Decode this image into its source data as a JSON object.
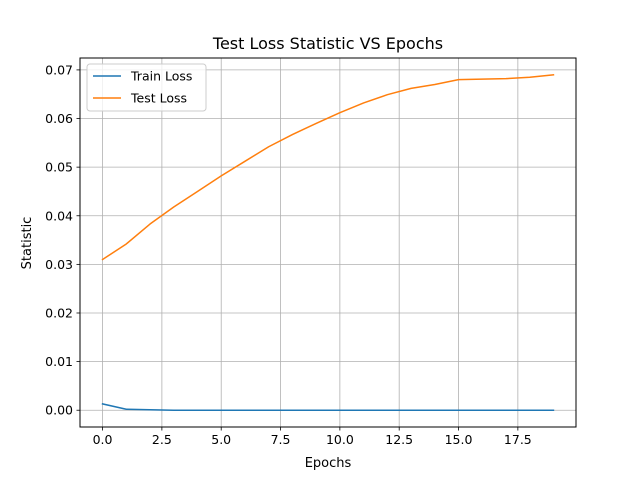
{
  "chart_data": {
    "type": "line",
    "title": "Test Loss Statistic VS Epochs",
    "xlabel": "Epochs",
    "ylabel": "Statistic",
    "xlim": [
      -0.95,
      19.95
    ],
    "ylim": [
      -0.00345,
      0.07245
    ],
    "x_ticks": [
      0.0,
      2.5,
      5.0,
      7.5,
      10.0,
      12.5,
      15.0,
      17.5
    ],
    "x_tick_labels": [
      "0.0",
      "2.5",
      "5.0",
      "7.5",
      "10.0",
      "12.5",
      "15.0",
      "17.5"
    ],
    "y_ticks": [
      0.0,
      0.01,
      0.02,
      0.03,
      0.04,
      0.05,
      0.06,
      0.07
    ],
    "y_tick_labels": [
      "0.00",
      "0.01",
      "0.02",
      "0.03",
      "0.04",
      "0.05",
      "0.06",
      "0.07"
    ],
    "grid": true,
    "legend_position": "top-left",
    "x": [
      0,
      1,
      2,
      3,
      4,
      5,
      6,
      7,
      8,
      9,
      10,
      11,
      12,
      13,
      14,
      15,
      16,
      17,
      18,
      19
    ],
    "series": [
      {
        "name": "Train Loss",
        "color": "#1f77b4",
        "values": [
          0.0013,
          0.0002,
          0.0001,
          0.0,
          0.0,
          0.0,
          0.0,
          0.0,
          0.0,
          0.0,
          0.0,
          0.0,
          0.0,
          0.0,
          0.0,
          0.0,
          0.0,
          0.0,
          0.0,
          0.0
        ]
      },
      {
        "name": "Test Loss",
        "color": "#ff7f0e",
        "values": [
          0.031,
          0.0342,
          0.0383,
          0.0418,
          0.045,
          0.0482,
          0.0512,
          0.0542,
          0.0567,
          0.059,
          0.0612,
          0.0632,
          0.0649,
          0.0662,
          0.067,
          0.068,
          0.0681,
          0.0682,
          0.0685,
          0.069
        ]
      }
    ]
  }
}
